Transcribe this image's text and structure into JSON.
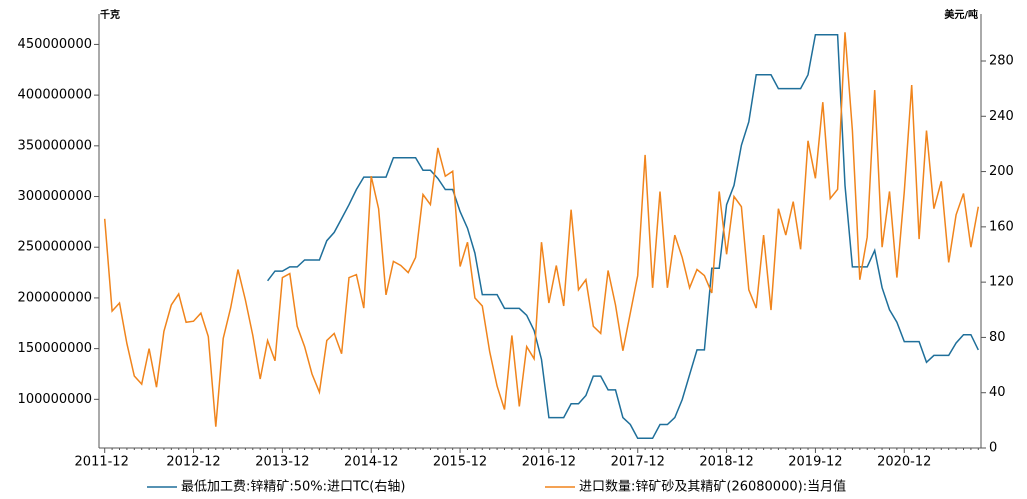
{
  "chart_data": {
    "type": "line",
    "y_label": "千克",
    "y2_label": "美元/吨",
    "categories": [
      "2011-12",
      null,
      null,
      null,
      null,
      null,
      null,
      null,
      null,
      null,
      null,
      null,
      "2012-12",
      null,
      null,
      null,
      null,
      null,
      null,
      null,
      null,
      null,
      null,
      null,
      "2013-12",
      null,
      null,
      null,
      null,
      null,
      null,
      null,
      null,
      null,
      null,
      null,
      "2014-12",
      null,
      null,
      null,
      null,
      null,
      null,
      null,
      null,
      null,
      null,
      null,
      "2015-12",
      null,
      null,
      null,
      null,
      null,
      null,
      null,
      null,
      null,
      null,
      null,
      "2016-12",
      null,
      null,
      null,
      null,
      null,
      null,
      null,
      null,
      null,
      null,
      null,
      "2017-12",
      null,
      null,
      null,
      null,
      null,
      null,
      null,
      null,
      null,
      null,
      null,
      "2018-12",
      null,
      null,
      null,
      null,
      null,
      null,
      null,
      null,
      null,
      null,
      null,
      "2019-12",
      null,
      null,
      null,
      null,
      null,
      null,
      null,
      null,
      null,
      null,
      null,
      "2020-12",
      null,
      null,
      null,
      null,
      null,
      null,
      null,
      null,
      null,
      null
    ],
    "series": [
      {
        "name": "最低加工费:锌精矿:50%:进口TC(右轴)",
        "color": "#1f6f9a",
        "axis": "y2",
        "values": [
          null,
          null,
          null,
          null,
          null,
          null,
          null,
          null,
          null,
          null,
          null,
          null,
          null,
          null,
          null,
          null,
          null,
          null,
          null,
          null,
          null,
          null,
          121,
          128,
          128,
          131,
          131,
          136,
          136,
          136,
          150,
          156,
          166,
          176,
          187,
          196,
          196,
          196,
          196,
          210,
          210,
          210,
          210,
          201,
          201,
          195,
          187,
          187,
          171,
          159,
          141,
          111,
          111,
          111,
          101,
          101,
          101,
          96,
          85,
          64,
          22,
          22,
          22,
          32,
          32,
          38,
          52,
          52,
          42,
          42,
          22,
          17,
          7,
          7,
          7,
          17,
          17,
          22,
          35,
          53,
          71,
          71,
          130,
          130,
          176,
          190,
          219,
          236,
          270,
          270,
          270,
          260,
          260,
          260,
          260,
          270,
          299,
          299,
          299,
          299,
          190,
          131,
          131,
          131,
          143,
          116,
          100,
          91,
          77,
          77,
          77,
          62,
          67,
          67,
          67,
          76,
          82,
          82,
          71
        ]
      },
      {
        "name": "进口数量:锌矿砂及其精矿(26080000):当月值",
        "color": "#f0841c",
        "axis": "y",
        "values": [
          278000000,
          187000000,
          195000000,
          155000000,
          123000000,
          115000000,
          150000000,
          112000000,
          167000000,
          193000000,
          204000000,
          176000000,
          177000000,
          185000000,
          162000000,
          73000000,
          160000000,
          190000000,
          228000000,
          198000000,
          163000000,
          120000000,
          158000000,
          138000000,
          220000000,
          224000000,
          172000000,
          152000000,
          125000000,
          107000000,
          158000000,
          165000000,
          145000000,
          220000000,
          223000000,
          190000000,
          320000000,
          288000000,
          203000000,
          236000000,
          232000000,
          225000000,
          240000000,
          302000000,
          292000000,
          348000000,
          320000000,
          325000000,
          231000000,
          255000000,
          200000000,
          192000000,
          147000000,
          113000000,
          90000000,
          163000000,
          93000000,
          152000000,
          140000000,
          255000000,
          195000000,
          232000000,
          192000000,
          287000000,
          208000000,
          218000000,
          172000000,
          165000000,
          227000000,
          193000000,
          148000000,
          185000000,
          222000000,
          341000000,
          210000000,
          305000000,
          210000000,
          262000000,
          240000000,
          210000000,
          228000000,
          222000000,
          205000000,
          305000000,
          243000000,
          300000000,
          290000000,
          208000000,
          190000000,
          262000000,
          188000000,
          288000000,
          262000000,
          295000000,
          248000000,
          355000000,
          318000000,
          393000000,
          298000000,
          307000000,
          462000000,
          365000000,
          218000000,
          260000000,
          405000000,
          250000000,
          305000000,
          220000000,
          305000000,
          410000000,
          258000000,
          365000000,
          288000000,
          315000000,
          235000000,
          282000000,
          303000000,
          250000000,
          290000000
        ]
      }
    ],
    "ylim": [
      52000000,
      480000000
    ],
    "yticks": [
      100000000,
      150000000,
      200000000,
      250000000,
      300000000,
      350000000,
      400000000,
      450000000
    ],
    "y2lim": [
      0,
      314
    ],
    "y2ticks": [
      0,
      40,
      80,
      120,
      160,
      200,
      240,
      280
    ],
    "grid": false,
    "legend": "bottom"
  }
}
